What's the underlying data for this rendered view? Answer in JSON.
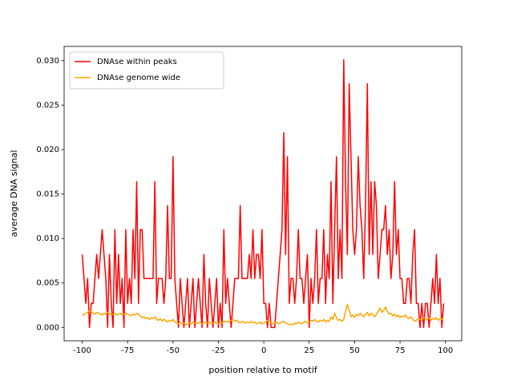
{
  "chart_data": {
    "type": "line",
    "xlabel": "position relative to motif",
    "ylabel": "average DNA signal",
    "legend": "upper left",
    "x": [
      -100,
      -99,
      -98,
      -97,
      -96,
      -95,
      -94,
      -93,
      -92,
      -91,
      -90,
      -89,
      -88,
      -87,
      -86,
      -85,
      -84,
      -83,
      -82,
      -81,
      -80,
      -79,
      -78,
      -77,
      -76,
      -75,
      -74,
      -73,
      -72,
      -71,
      -70,
      -69,
      -68,
      -67,
      -66,
      -65,
      -64,
      -63,
      -62,
      -61,
      -60,
      -59,
      -58,
      -57,
      -56,
      -55,
      -54,
      -53,
      -52,
      -51,
      -50,
      -49,
      -48,
      -47,
      -46,
      -45,
      -44,
      -43,
      -42,
      -41,
      -40,
      -39,
      -38,
      -37,
      -36,
      -35,
      -34,
      -33,
      -32,
      -31,
      -30,
      -29,
      -28,
      -27,
      -26,
      -25,
      -24,
      -23,
      -22,
      -21,
      -20,
      -19,
      -18,
      -17,
      -16,
      -15,
      -14,
      -13,
      -12,
      -11,
      -10,
      -9,
      -8,
      -7,
      -6,
      -5,
      -4,
      -3,
      -2,
      -1,
      0,
      1,
      2,
      3,
      4,
      5,
      6,
      7,
      8,
      9,
      10,
      11,
      12,
      13,
      14,
      15,
      16,
      17,
      18,
      19,
      20,
      21,
      22,
      23,
      24,
      25,
      26,
      27,
      28,
      29,
      30,
      31,
      32,
      33,
      34,
      35,
      36,
      37,
      38,
      39,
      40,
      41,
      42,
      43,
      44,
      45,
      46,
      47,
      48,
      49,
      50,
      51,
      52,
      53,
      54,
      55,
      56,
      57,
      58,
      59,
      60,
      61,
      62,
      63,
      64,
      65,
      66,
      67,
      68,
      69,
      70,
      71,
      72,
      73,
      74,
      75,
      76,
      77,
      78,
      79,
      80,
      81,
      82,
      83,
      84,
      85,
      86,
      87,
      88,
      89,
      90,
      91,
      92,
      93,
      94,
      95,
      96,
      97,
      98,
      99
    ],
    "series": [
      {
        "name": "DNAse within peaks",
        "color": "#ff0000",
        "values": [
          0.0082,
          0.0055,
          0.0027,
          0.0055,
          0,
          0.0027,
          0.0027,
          0.0055,
          0.0082,
          0.0055,
          0.0082,
          0.011,
          0.0082,
          0.0055,
          0,
          0.0082,
          0.0027,
          0,
          0.011,
          0.0027,
          0.0082,
          0.0027,
          0.0055,
          0,
          0.011,
          0.0027,
          0.0055,
          0.0027,
          0.011,
          0.0055,
          0.0164,
          0.0027,
          0.011,
          0.011,
          0.0055,
          0.0055,
          0.0055,
          0.0055,
          0.0055,
          0.0055,
          0.0164,
          0.0027,
          0.0055,
          0.0055,
          0.0055,
          0.0027,
          0.0055,
          0.0137,
          0.0055,
          0.0055,
          0.0192,
          0.0055,
          0.0027,
          0,
          0.0055,
          0.0027,
          0,
          0.0027,
          0.0055,
          0,
          0.0027,
          0.0055,
          0,
          0.0027,
          0.0055,
          0.0027,
          0,
          0.0082,
          0.0027,
          0,
          0.0055,
          0.0027,
          0,
          0.0027,
          0.0055,
          0,
          0.0027,
          0,
          0.011,
          0.0027,
          0.0055,
          0.0027,
          0,
          0.0027,
          0.0055,
          0.0055,
          0.0055,
          0.0137,
          0.0055,
          0.0055,
          0.0055,
          0.0055,
          0.0082,
          0.0055,
          0.011,
          0.0055,
          0.0082,
          0.0082,
          0.0055,
          0.011,
          0.0027,
          0.0027,
          0,
          0.0027,
          0,
          0,
          0,
          0.0027,
          0.0055,
          0.0082,
          0.011,
          0.0219,
          0.0082,
          0.0192,
          0.0027,
          0.0055,
          0.0055,
          0.0027,
          0.0055,
          0.011,
          0.0055,
          0.0055,
          0.0027,
          0.0055,
          0.0082,
          0,
          0.0055,
          0.0027,
          0.0055,
          0.011,
          0.0027,
          0.0055,
          0.0055,
          0.011,
          0.0027,
          0.0082,
          0.0055,
          0.0164,
          0.0027,
          0.011,
          0.0192,
          0.0055,
          0.011,
          0.0055,
          0.0301,
          0.0164,
          0.0082,
          0.0274,
          0.0192,
          0.011,
          0.0082,
          0.011,
          0.0192,
          0.0137,
          0.011,
          0.0055,
          0.0137,
          0.0274,
          0.0082,
          0.0164,
          0.0082,
          0.0164,
          0.0137,
          0.0055,
          0.0082,
          0.011,
          0.011,
          0.0137,
          0.0082,
          0.011,
          0.0055,
          0.0082,
          0.0164,
          0.0082,
          0.011,
          0.0055,
          0.0055,
          0.0027,
          0.0027,
          0.0055,
          0.0055,
          0.0027,
          0.0082,
          0.011,
          0.0027,
          0.0027,
          0,
          0.0027,
          0,
          0.0027,
          0.0027,
          0,
          0.0027,
          0.0055,
          0.0027,
          0.0082,
          0.0027,
          0.0055,
          0,
          0.0027
        ]
      },
      {
        "name": "DNAse genome wide",
        "color": "#ffa500",
        "values": [
          0.0015,
          0.0014,
          0.0016,
          0.0017,
          0.0019,
          0.0018,
          0.0016,
          0.0015,
          0.0017,
          0.0016,
          0.0015,
          0.0014,
          0.0016,
          0.0015,
          0.0017,
          0.0016,
          0.0014,
          0.0015,
          0.0016,
          0.0014,
          0.0015,
          0.0016,
          0.0014,
          0.0015,
          0.0016,
          0.0015,
          0.0014,
          0.0013,
          0.0015,
          0.0014,
          0.0016,
          0.0015,
          0.0013,
          0.0011,
          0.0012,
          0.001,
          0.0011,
          0.0009,
          0.0011,
          0.001,
          0.0012,
          0.0009,
          0.0008,
          0.001,
          0.0007,
          0.0009,
          0.0008,
          0.0006,
          0.0008,
          0.0007,
          0.0009,
          0.0006,
          0.0005,
          0.0004,
          0.0006,
          0.0004,
          0.0005,
          0.0003,
          0.0004,
          0.0005,
          0.0004,
          0.0006,
          0.0005,
          0.0004,
          0.0005,
          0.0006,
          0.0004,
          0.0005,
          0.0006,
          0.0005,
          0.0006,
          0.0004,
          0.0005,
          0.0006,
          0.0005,
          0.0004,
          0.0006,
          0.0005,
          0.0007,
          0.0006,
          0.0007,
          0.0006,
          0.0008,
          0.0009,
          0.0007,
          0.0008,
          0.0006,
          0.0005,
          0.0007,
          0.0006,
          0.0005,
          0.0006,
          0.0005,
          0.0007,
          0.0005,
          0.0006,
          0.0004,
          0.0005,
          0.0006,
          0.0004,
          0.0005,
          0.0006,
          0.0008,
          0.0007,
          0.0005,
          0.0004,
          0.0005,
          0.0006,
          0.0004,
          0.0005,
          0.0006,
          0.0007,
          0.0005,
          0.0004,
          0.0003,
          0.0004,
          0.0003,
          0.0005,
          0.0004,
          0.0006,
          0.0005,
          0.0004,
          0.0006,
          0.0007,
          0.0005,
          0.0006,
          0.0008,
          0.0007,
          0.0009,
          0.0007,
          0.0006,
          0.0008,
          0.0007,
          0.0009,
          0.0006,
          0.0008,
          0.0007,
          0.0012,
          0.0009,
          0.0016,
          0.0011,
          0.0008,
          0.0009,
          0.0007,
          0.0009,
          0.0018,
          0.0026,
          0.0019,
          0.0012,
          0.0014,
          0.0011,
          0.0015,
          0.0013,
          0.0016,
          0.0014,
          0.0012,
          0.0015,
          0.0017,
          0.0013,
          0.0016,
          0.0014,
          0.0012,
          0.0015,
          0.0018,
          0.0022,
          0.0017,
          0.0019,
          0.0023,
          0.0018,
          0.0015,
          0.0016,
          0.0013,
          0.0015,
          0.0012,
          0.0014,
          0.0011,
          0.0013,
          0.0012,
          0.0014,
          0.0011,
          0.001,
          0.0012,
          0.0009,
          0.0007,
          0.0008,
          0.001,
          0.0009,
          0.0008,
          0.0011,
          0.001,
          0.0009,
          0.0011,
          0.0008,
          0.001,
          0.0009,
          0.0011,
          0.0008,
          0.001,
          0.0009,
          0.0012
        ]
      }
    ],
    "xlim": [
      -109.95,
      108.95
    ],
    "xticks": [
      -100,
      -75,
      -50,
      -25,
      0,
      25,
      50,
      75,
      100
    ],
    "ylim": [
      -0.0015,
      0.0316
    ],
    "yticks": [
      {
        "value": 0,
        "label": "0.000"
      },
      {
        "value": 0.005,
        "label": "0.005"
      },
      {
        "value": 0.01,
        "label": "0.010"
      },
      {
        "value": 0.015,
        "label": "0.015"
      },
      {
        "value": 0.02,
        "label": "0.020"
      },
      {
        "value": 0.025,
        "label": "0.025"
      },
      {
        "value": 0.03,
        "label": "0.030"
      }
    ]
  }
}
